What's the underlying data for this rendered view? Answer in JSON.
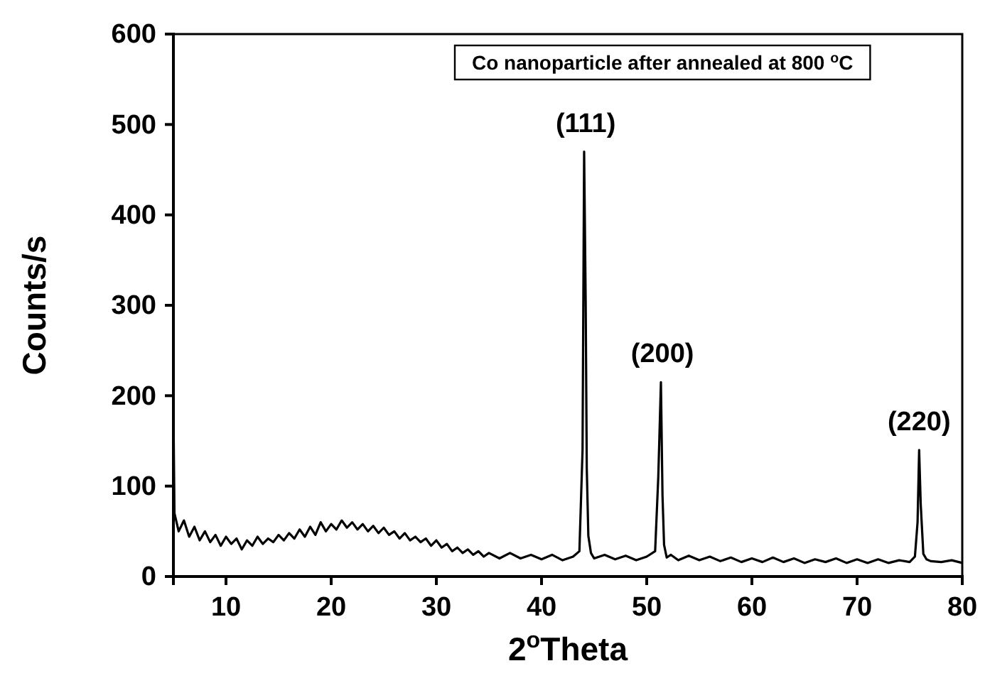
{
  "chart_data": {
    "type": "line",
    "xlabel": "2$^{o}$Theta",
    "ylabel": "Counts/s",
    "annotations": [
      "Co nanoparticle after annealed at 800 $^{o}$C",
      {
        "text": "(111)",
        "x": 44.2,
        "y": 470
      },
      {
        "text": "(200)",
        "x": 51.5,
        "y": 215
      },
      {
        "text": "(220)",
        "x": 75.9,
        "y": 140
      }
    ],
    "xlim": [
      5,
      80
    ],
    "xticks": [
      10,
      20,
      30,
      40,
      50,
      60,
      70,
      80
    ],
    "ylim": [
      0,
      600
    ],
    "yticks": [
      0,
      100,
      200,
      300,
      400,
      500,
      600
    ],
    "grid": false,
    "marker": "none",
    "line_style": "solid",
    "series": [
      {
        "color": "#000000",
        "x": [
          5.0,
          5.1,
          5.5,
          6,
          6.5,
          7,
          7.5,
          8,
          8.5,
          9,
          9.5,
          10,
          10.5,
          11,
          11.5,
          12,
          12.5,
          13,
          13.5,
          14,
          14.5,
          15,
          15.5,
          16,
          16.5,
          17,
          17.5,
          18,
          18.5,
          19,
          19.5,
          20,
          20.5,
          21,
          21.5,
          22,
          22.5,
          23,
          23.5,
          24,
          24.5,
          25,
          25.5,
          26,
          26.5,
          27,
          27.5,
          28,
          28.5,
          29,
          29.5,
          30,
          30.5,
          31,
          31.5,
          32,
          32.5,
          33,
          33.5,
          34,
          34.5,
          35,
          36,
          37,
          38,
          39,
          40,
          41,
          42,
          43,
          43.6,
          43.9,
          44.05,
          44.2,
          44.3,
          44.45,
          44.7,
          45,
          46,
          47,
          48,
          49,
          50,
          50.8,
          51.1,
          51.35,
          51.5,
          51.65,
          51.9,
          52.3,
          53,
          54,
          55,
          56,
          57,
          58,
          59,
          60,
          61,
          62,
          63,
          64,
          65,
          66,
          67,
          68,
          69,
          70,
          71,
          72,
          73,
          74,
          75,
          75.5,
          75.75,
          75.9,
          76.05,
          76.3,
          76.6,
          77,
          78,
          79,
          80
        ],
        "values": [
          185,
          70,
          50,
          62,
          44,
          55,
          40,
          50,
          38,
          46,
          34,
          44,
          36,
          42,
          30,
          40,
          34,
          44,
          36,
          42,
          38,
          46,
          40,
          48,
          42,
          52,
          44,
          55,
          46,
          60,
          50,
          58,
          52,
          62,
          54,
          60,
          52,
          58,
          50,
          56,
          48,
          54,
          46,
          50,
          42,
          48,
          40,
          44,
          38,
          42,
          34,
          40,
          32,
          36,
          28,
          32,
          26,
          30,
          24,
          28,
          22,
          26,
          20,
          26,
          20,
          24,
          19,
          24,
          18,
          22,
          28,
          140,
          470,
          300,
          120,
          45,
          26,
          20,
          24,
          19,
          23,
          18,
          22,
          28,
          110,
          215,
          90,
          35,
          21,
          24,
          18,
          23,
          18,
          22,
          17,
          21,
          16,
          20,
          16,
          21,
          16,
          20,
          15,
          19,
          16,
          20,
          15,
          19,
          15,
          19,
          15,
          18,
          16,
          22,
          60,
          140,
          80,
          25,
          19,
          17,
          16,
          18,
          15
        ]
      }
    ]
  }
}
